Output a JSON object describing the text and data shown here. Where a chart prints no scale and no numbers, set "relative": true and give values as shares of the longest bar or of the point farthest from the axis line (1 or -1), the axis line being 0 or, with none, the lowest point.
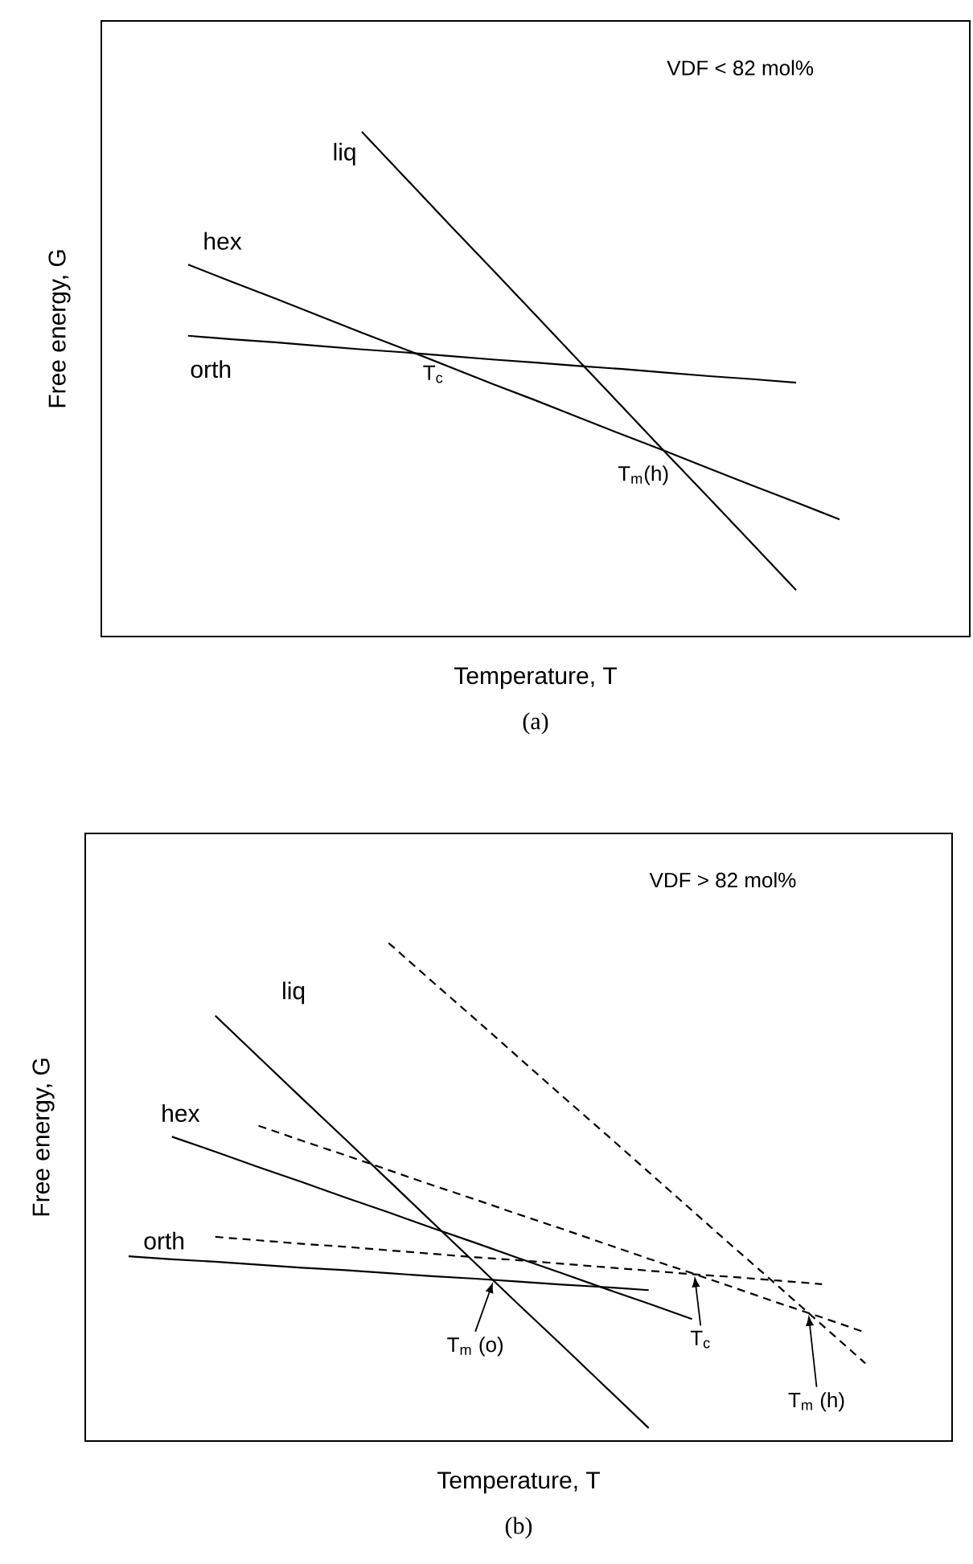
{
  "chart_data": [
    {
      "type": "line",
      "relative": true,
      "xlabel": "Temperature,  T",
      "ylabel": "Free energy,  G",
      "categories": [
        null,
        null,
        null,
        null,
        null,
        null,
        null,
        null,
        null,
        null,
        null,
        null,
        null,
        null,
        null,
        null,
        null,
        null,
        null,
        null,
        null
      ],
      "series": [
        {
          "name": "liq",
          "color": "#000000",
          "values": [
            null,
            null,
            null,
            null,
            null,
            null,
            1,
            0.909,
            0.818,
            0.728,
            0.637,
            0.546,
            0.455,
            0.364,
            0.274,
            0.183,
            0.092,
            null,
            null,
            null,
            null
          ]
        },
        {
          "name": "hex",
          "color": "#000000",
          "values": [
            null,
            null,
            0.737,
            0.703,
            0.67,
            0.636,
            0.602,
            0.569,
            0.535,
            0.501,
            0.468,
            0.434,
            0.4,
            0.367,
            0.333,
            0.299,
            0.266,
            0.232,
            null,
            null,
            null
          ]
        },
        {
          "name": "orth",
          "color": "#000000",
          "values": [
            null,
            null,
            0.596,
            0.589,
            0.583,
            0.576,
            0.569,
            0.563,
            0.556,
            0.549,
            0.543,
            0.536,
            0.53,
            0.523,
            0.516,
            0.51,
            0.503,
            null,
            null,
            null,
            null
          ]
        }
      ],
      "annotations": [
        "VDF < 82 mol%",
        "(a)",
        {
          "text": "T$_{c}$",
          "y": 0.56
        },
        {
          "text": "T$_{m}$(h)",
          "y": 0.368
        }
      ]
    },
    {
      "type": "line",
      "relative": true,
      "xlabel": "Temperature, T",
      "ylabel": "Free energy, G",
      "categories": [
        null,
        null,
        null,
        null,
        null,
        null,
        null,
        null,
        null,
        null,
        null,
        null,
        null,
        null,
        null,
        null,
        null,
        null,
        null,
        null,
        null
      ],
      "series": [
        {
          "name": "liq",
          "color": "#000000",
          "values": [
            null,
            null,
            null,
            0.854,
            0.771,
            0.688,
            0.606,
            0.523,
            0.44,
            0.357,
            0.274,
            0.192,
            0.109,
            0.026,
            null,
            null,
            null,
            null,
            null,
            null,
            null
          ]
        },
        {
          "name": "hex",
          "color": "#000000",
          "values": [
            null,
            null,
            0.611,
            0.581,
            0.55,
            0.52,
            0.489,
            0.459,
            0.428,
            0.398,
            0.367,
            0.337,
            0.306,
            0.276,
            0.245,
            null,
            null,
            null,
            null,
            null,
            null
          ]
        },
        {
          "name": "orth",
          "color": "#000000",
          "values": [
            null,
            0.371,
            0.365,
            0.36,
            0.354,
            0.348,
            0.343,
            0.337,
            0.331,
            0.326,
            0.32,
            0.314,
            0.309,
            0.303,
            null,
            null,
            null,
            null,
            null,
            null,
            null
          ]
        },
        {
          "color": "#000000",
          "line_style": "dashed",
          "values": [
            null,
            null,
            null,
            null,
            null,
            null,
            null,
            1,
            0.923,
            0.847,
            0.77,
            0.693,
            0.617,
            0.54,
            0.463,
            0.386,
            0.31,
            0.233,
            0.156,
            null,
            null
          ]
        },
        {
          "color": "#000000",
          "line_style": "dashed",
          "values": [
            null,
            null,
            null,
            null,
            0.633,
            0.603,
            0.574,
            0.544,
            0.514,
            0.485,
            0.455,
            0.426,
            0.396,
            0.366,
            0.337,
            0.307,
            0.277,
            0.248,
            0.218,
            null,
            null
          ]
        },
        {
          "color": "#000000",
          "line_style": "dashed",
          "values": [
            null,
            null,
            null,
            0.41,
            0.403,
            0.396,
            0.39,
            0.383,
            0.376,
            0.369,
            0.363,
            0.356,
            0.349,
            0.342,
            0.335,
            0.329,
            0.322,
            0.315,
            null,
            null,
            null
          ]
        }
      ],
      "annotations": [
        "VDF > 82 mol%",
        "(b)",
        {
          "text": "T$_{m}$ (o)",
          "y": 0.323
        },
        {
          "text": "T$_{c}$",
          "y": 0.335
        },
        {
          "text": "T$_{m}$ (h)",
          "y": 0.257
        }
      ]
    }
  ]
}
